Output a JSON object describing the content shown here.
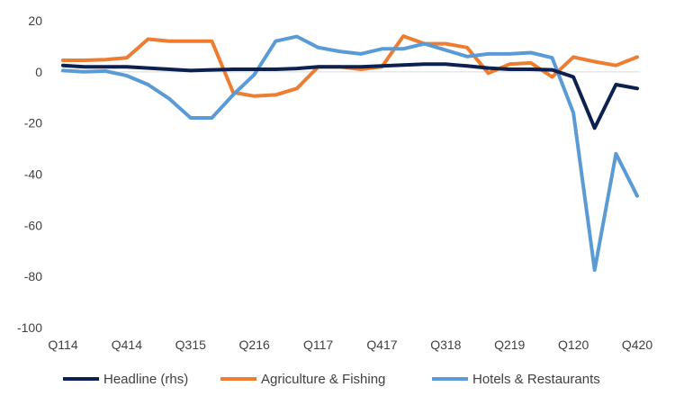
{
  "chart_data": {
    "type": "line",
    "title": "",
    "xlabel": "",
    "ylabel": "",
    "ylim": [
      -100,
      20
    ],
    "yticks": [
      20,
      0,
      -20,
      -40,
      -60,
      -80,
      -100
    ],
    "grid": false,
    "legend_position": "bottom",
    "x": [
      "Q114",
      "Q214",
      "Q314",
      "Q414",
      "Q115",
      "Q215",
      "Q315",
      "Q415",
      "Q116",
      "Q216",
      "Q316",
      "Q416",
      "Q117",
      "Q217",
      "Q317",
      "Q417",
      "Q118",
      "Q218",
      "Q318",
      "Q418",
      "Q119",
      "Q219",
      "Q319",
      "Q419",
      "Q120",
      "Q220",
      "Q320",
      "Q420"
    ],
    "x_tick_labels": [
      "Q114",
      "Q414",
      "Q315",
      "Q216",
      "Q117",
      "Q417",
      "Q318",
      "Q219",
      "Q120",
      "Q420"
    ],
    "series": [
      {
        "name": "Headline (rhs)",
        "color": "#0d2150",
        "values": [
          2.5,
          2.0,
          2.0,
          2.0,
          1.5,
          1.0,
          0.5,
          0.8,
          1.0,
          1.0,
          1.0,
          1.3,
          2.0,
          2.0,
          2.0,
          2.3,
          2.7,
          3.0,
          3.0,
          2.3,
          1.5,
          1.0,
          1.0,
          0.8,
          -2.0,
          -22.0,
          -5.0,
          -6.5
        ]
      },
      {
        "name": "Agriculture & Fishing",
        "color": "#ed7d31",
        "values": [
          4.5,
          4.5,
          4.8,
          5.5,
          12.8,
          12.0,
          12.0,
          12.0,
          -8.0,
          -9.5,
          -9.0,
          -6.5,
          2.0,
          2.0,
          1.0,
          2.0,
          14.0,
          11.0,
          11.0,
          9.5,
          -0.5,
          3.0,
          3.5,
          -2.0,
          5.8,
          4.0,
          2.5,
          5.8
        ]
      },
      {
        "name": "Hotels & Restaurants",
        "color": "#5b9bd5",
        "values": [
          0.5,
          0.0,
          0.3,
          -1.5,
          -5.0,
          -10.5,
          -18.0,
          -18.0,
          -9.0,
          -1.0,
          12.0,
          13.8,
          9.5,
          8.0,
          7.0,
          9.0,
          9.0,
          11.0,
          8.5,
          6.0,
          7.0,
          7.0,
          7.5,
          5.5,
          -16.0,
          -77.5,
          -32.0,
          -48.5
        ]
      }
    ]
  }
}
